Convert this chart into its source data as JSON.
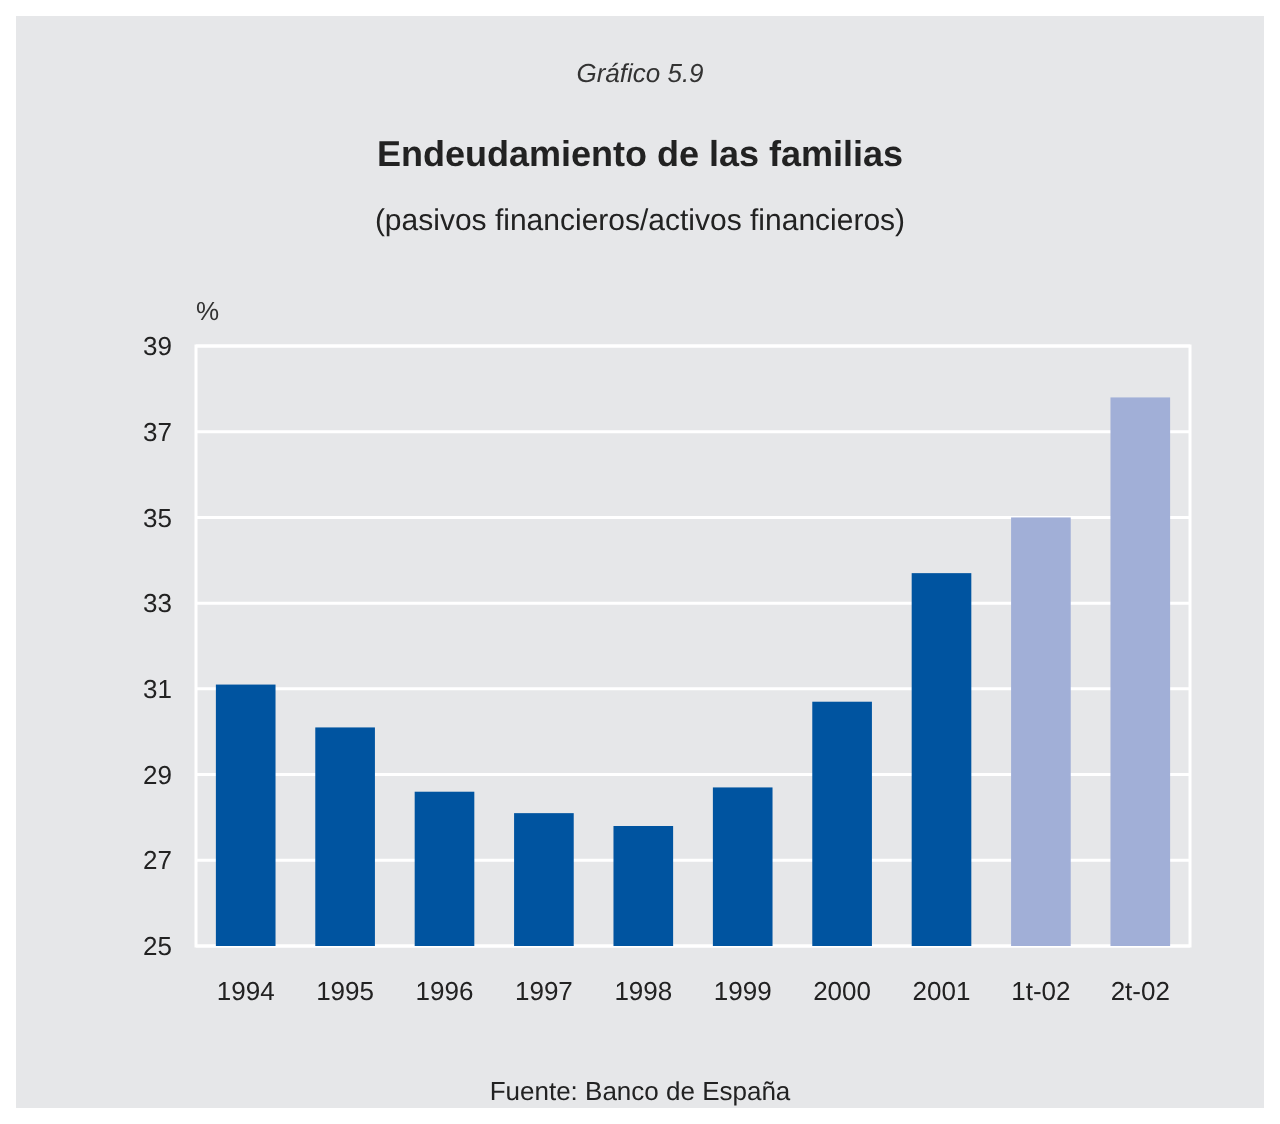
{
  "chart_data": {
    "type": "bar",
    "title": "Endeudamiento de las familias",
    "subtitle": "(pasivos financieros/activos financieros)",
    "ylabel": "%",
    "annotations": [
      "Gráfico 5.9",
      "Fuente: Banco de España"
    ],
    "categories": [
      "1994",
      "1995",
      "1996",
      "1997",
      "1998",
      "1999",
      "2000",
      "2001",
      "1t-02",
      "2t-02"
    ],
    "values": [
      31.1,
      30.1,
      28.6,
      28.1,
      27.8,
      28.7,
      30.7,
      33.7,
      35.0,
      37.8
    ],
    "colors": [
      "#0054a0",
      "#0054a0",
      "#0054a0",
      "#0054a0",
      "#0054a0",
      "#0054a0",
      "#0054a0",
      "#0054a0",
      "#a1afd7",
      "#a1afd7"
    ],
    "ylim": [
      25,
      39
    ],
    "yticks": [
      25,
      27,
      29,
      31,
      33,
      35,
      37,
      39
    ],
    "grid": "y"
  }
}
